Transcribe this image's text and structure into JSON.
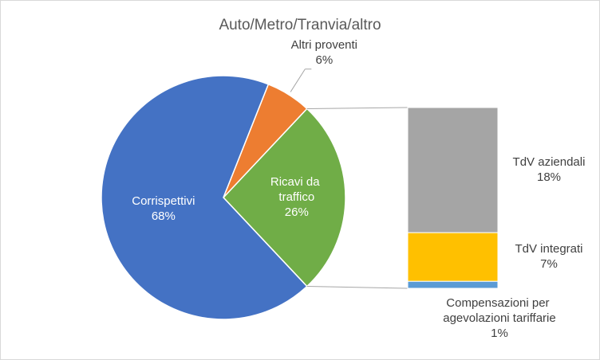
{
  "chart_data": {
    "type": "bar-of-pie",
    "title": "Auto/Metro/Tranvia/altro",
    "pie": {
      "categories": [
        "Ricavi da traffico",
        "Altri proventi",
        "Corrispettivi"
      ],
      "values": [
        26,
        6,
        68
      ],
      "value_labels": [
        "26%",
        "6%",
        "68%"
      ],
      "colors": [
        "#70ad47",
        "#ed7d31",
        "#4472c4"
      ]
    },
    "bar": {
      "categories": [
        "TdV aziendali",
        "TdV integrati",
        "Compensazioni per agevolazioni tariffarie"
      ],
      "values": [
        18,
        7,
        1
      ],
      "value_labels": [
        "18%",
        "7%",
        "1%"
      ],
      "colors": [
        "#a5a5a5",
        "#ffc000",
        "#5b9bd5"
      ]
    }
  }
}
